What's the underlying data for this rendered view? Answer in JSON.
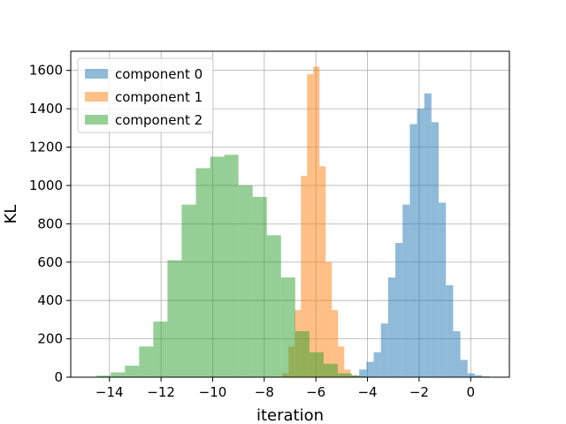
{
  "chart_data": {
    "type": "histogram",
    "title": "",
    "xlabel": "iteration",
    "ylabel": "KL",
    "xlim": [
      -15.5,
      1.5
    ],
    "ylim": [
      0,
      1700
    ],
    "xticks": [
      -14,
      -12,
      -10,
      -8,
      -6,
      -4,
      -2,
      0
    ],
    "yticks": [
      0,
      200,
      400,
      600,
      800,
      1000,
      1200,
      1400,
      1600
    ],
    "grid": true,
    "legend_position": "top-left",
    "bar_alpha": 0.5,
    "series": [
      {
        "name": "component 0",
        "color": "#1f77b4",
        "bins": [
          [
            -4.6,
            -4.32,
            10
          ],
          [
            -4.32,
            -4.04,
            40
          ],
          [
            -4.04,
            -3.76,
            80
          ],
          [
            -3.76,
            -3.48,
            130
          ],
          [
            -3.48,
            -3.2,
            280
          ],
          [
            -3.2,
            -2.92,
            520
          ],
          [
            -2.92,
            -2.64,
            700
          ],
          [
            -2.64,
            -2.36,
            900
          ],
          [
            -2.36,
            -2.08,
            1320
          ],
          [
            -2.08,
            -1.8,
            1400
          ],
          [
            -1.8,
            -1.52,
            1480
          ],
          [
            -1.52,
            -1.24,
            1330
          ],
          [
            -1.24,
            -0.96,
            910
          ],
          [
            -0.96,
            -0.68,
            480
          ],
          [
            -0.68,
            -0.4,
            240
          ],
          [
            -0.4,
            -0.12,
            90
          ],
          [
            -0.12,
            0.16,
            20
          ],
          [
            0.16,
            0.44,
            10
          ],
          [
            0.44,
            0.72,
            4
          ]
        ]
      },
      {
        "name": "component 1",
        "color": "#ff7f0e",
        "bins": [
          [
            -7.3,
            -7.06,
            20
          ],
          [
            -7.06,
            -6.82,
            160
          ],
          [
            -6.82,
            -6.58,
            350
          ],
          [
            -6.58,
            -6.34,
            1050
          ],
          [
            -6.34,
            -6.1,
            1580
          ],
          [
            -6.1,
            -5.86,
            1620
          ],
          [
            -5.86,
            -5.62,
            1100
          ],
          [
            -5.62,
            -5.38,
            600
          ],
          [
            -5.38,
            -5.14,
            350
          ],
          [
            -5.14,
            -4.9,
            160
          ],
          [
            -4.9,
            -4.66,
            40
          ],
          [
            -4.66,
            -4.42,
            10
          ]
        ]
      },
      {
        "name": "component 2",
        "color": "#2ca02c",
        "bins": [
          [
            -14.5,
            -13.95,
            8
          ],
          [
            -13.95,
            -13.4,
            25
          ],
          [
            -13.4,
            -12.85,
            60
          ],
          [
            -12.85,
            -12.3,
            160
          ],
          [
            -12.3,
            -11.75,
            290
          ],
          [
            -11.75,
            -11.2,
            610
          ],
          [
            -11.2,
            -10.65,
            900
          ],
          [
            -10.65,
            -10.1,
            1090
          ],
          [
            -10.1,
            -9.55,
            1150
          ],
          [
            -9.55,
            -9.0,
            1160
          ],
          [
            -9.0,
            -8.45,
            1000
          ],
          [
            -8.45,
            -7.9,
            940
          ],
          [
            -7.9,
            -7.35,
            740
          ],
          [
            -7.35,
            -6.8,
            520
          ],
          [
            -6.8,
            -6.25,
            240
          ],
          [
            -6.25,
            -5.7,
            130
          ],
          [
            -5.7,
            -5.15,
            70
          ],
          [
            -5.15,
            -4.6,
            20
          ],
          [
            -4.6,
            -4.05,
            5
          ]
        ]
      }
    ]
  }
}
